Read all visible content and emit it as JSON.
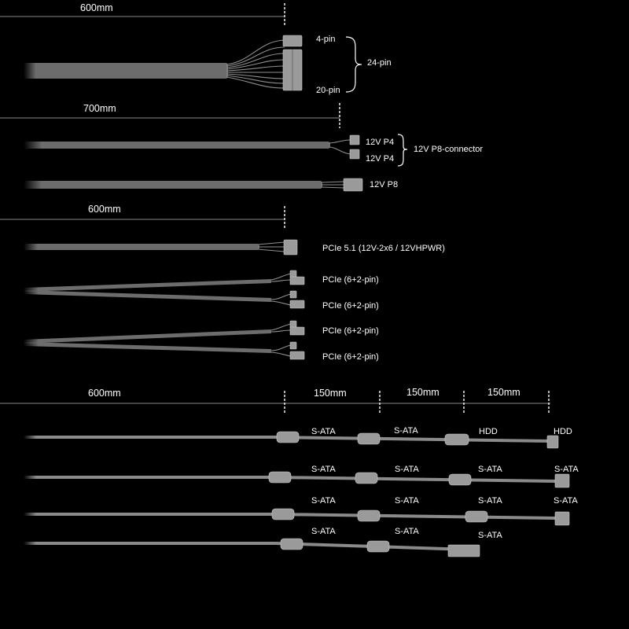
{
  "dimensions": {
    "main_cable_length": "600mm",
    "cpu_cable_length": "700mm",
    "pcie_cable_length": "600mm",
    "sata_first_length": "600mm",
    "sata_segment_1": "150mm",
    "sata_segment_2": "150mm",
    "sata_segment_3": "150mm"
  },
  "atx_cable": {
    "label_top": "4-pin",
    "label_bottom": "20-pin",
    "group_label": "24-pin"
  },
  "cpu_cables": {
    "split_top": "12V P4",
    "split_bottom": "12V P4",
    "split_group": "12V P8-connector",
    "single": "12V P8"
  },
  "pcie_cables": {
    "highpower": "PCIe 5.1 (12V-2x6 / 12VHPWR)",
    "pair1_top": "PCIe (6+2-pin)",
    "pair1_bottom": "PCIe (6+2-pin)",
    "pair2_top": "PCIe (6+2-pin)",
    "pair2_bottom": "PCIe (6+2-pin)"
  },
  "sata_cables": {
    "row1": [
      "S-ATA",
      "S-ATA",
      "HDD",
      "HDD"
    ],
    "row2": [
      "S-ATA",
      "S-ATA",
      "S-ATA",
      "S-ATA"
    ],
    "row3": [
      "S-ATA",
      "S-ATA",
      "S-ATA",
      "S-ATA"
    ],
    "row4": [
      "S-ATA",
      "S-ATA",
      "S-ATA"
    ]
  },
  "colors": {
    "background": "#000000",
    "cable": "#6c6c6c",
    "text": "#ffffff"
  }
}
